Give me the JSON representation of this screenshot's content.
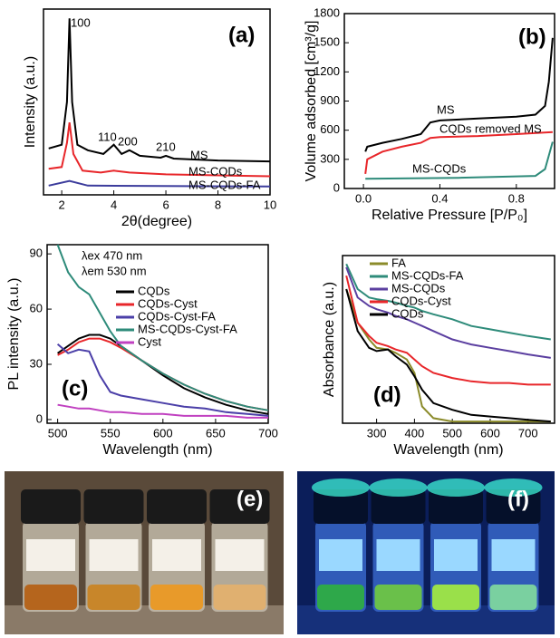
{
  "chart_data": [
    {
      "type": "line",
      "panel_label": "(a)",
      "xlabel": "2θ(degree)",
      "ylabel": "Intensity (a.u.)",
      "xlim": [
        1.3,
        10
      ],
      "xticks": [
        2,
        4,
        6,
        8,
        10
      ],
      "ylim": [
        0,
        100
      ],
      "annotations": [
        "100",
        "110",
        "200",
        "210"
      ],
      "series": [
        {
          "name": "MS",
          "color": "#000000",
          "x": [
            1.5,
            2.0,
            2.2,
            2.3,
            2.4,
            2.6,
            3.0,
            3.6,
            4.0,
            4.3,
            4.6,
            5.0,
            5.8,
            6.0,
            6.3,
            8,
            10
          ],
          "values": [
            25,
            27,
            50,
            95,
            50,
            27,
            24,
            22,
            27,
            22,
            24,
            21,
            20,
            21,
            19.5,
            18.5,
            18
          ]
        },
        {
          "name": "MS-CQDs",
          "color": "#e8262a",
          "x": [
            1.5,
            2.0,
            2.2,
            2.3,
            2.45,
            2.8,
            3.5,
            4.0,
            4.6,
            6,
            10
          ],
          "values": [
            14,
            15,
            28,
            39,
            22,
            13,
            12,
            13,
            12,
            11,
            10
          ]
        },
        {
          "name": "MS-CQDs-FA",
          "color": "#3c3c9c",
          "x": [
            1.5,
            2.3,
            3,
            10
          ],
          "values": [
            5,
            7.5,
            5,
            4.5
          ]
        }
      ]
    },
    {
      "type": "line",
      "panel_label": "(b)",
      "xlabel": "Relative Pressure [P/P₀]",
      "ylabel": "Volume adsorbed [cm³/g]",
      "xlim": [
        -0.1,
        1.0
      ],
      "xticks": [
        {
          "value": 0,
          "label": "0.0"
        },
        {
          "value": 0.4,
          "label": "0.4"
        },
        {
          "value": 0.8,
          "label": "0.8"
        }
      ],
      "ylim": [
        0,
        1800
      ],
      "yticks": [
        0,
        300,
        600,
        900,
        1200,
        1500,
        1800
      ],
      "series": [
        {
          "name": "MS",
          "color": "#000000",
          "x": [
            0.01,
            0.02,
            0.1,
            0.2,
            0.3,
            0.35,
            0.4,
            0.6,
            0.8,
            0.9,
            0.95,
            0.97,
            0.99
          ],
          "values": [
            380,
            430,
            470,
            510,
            560,
            680,
            700,
            720,
            740,
            760,
            850,
            1100,
            1550
          ]
        },
        {
          "name": "CQDs removed MS",
          "color": "#e8262a",
          "x": [
            0.01,
            0.02,
            0.1,
            0.2,
            0.3,
            0.35,
            0.4,
            0.6,
            0.8,
            0.99
          ],
          "values": [
            150,
            300,
            380,
            430,
            470,
            520,
            530,
            540,
            560,
            580
          ]
        },
        {
          "name": "MS-CQDs",
          "color": "#2e8b7a",
          "x": [
            0.01,
            0.5,
            0.9,
            0.95,
            0.99
          ],
          "values": [
            100,
            110,
            130,
            200,
            480
          ]
        }
      ]
    },
    {
      "type": "line",
      "panel_label": "(c)",
      "xlabel": "Wavelength (nm)",
      "ylabel": "PL intensity (a.u.)",
      "xlim": [
        490,
        700
      ],
      "xticks": [
        500,
        550,
        600,
        650,
        700
      ],
      "ylim": [
        -2,
        95
      ],
      "yticks": [
        0,
        30,
        60,
        90
      ],
      "annotations": [
        "λex 470 nm",
        "λem 530 nm"
      ],
      "legend": "upper right",
      "x": [
        500,
        510,
        520,
        530,
        540,
        550,
        560,
        580,
        600,
        620,
        640,
        660,
        680,
        700
      ],
      "series": [
        {
          "name": "CQDs",
          "color": "#000000",
          "values": [
            36,
            40,
            44,
            46,
            46,
            44,
            40,
            32,
            24,
            17,
            12,
            8,
            5,
            3
          ]
        },
        {
          "name": "CQDs-Cyst",
          "color": "#e8262a",
          "values": [
            35,
            38,
            42,
            44,
            44,
            42,
            39,
            32,
            25,
            19,
            14,
            10,
            7,
            5
          ]
        },
        {
          "name": "CQDs-Cyst-FA",
          "color": "#4b3fa8",
          "values": [
            41,
            36,
            38,
            37,
            24,
            15,
            13,
            11,
            9,
            7,
            6,
            4,
            3,
            2
          ]
        },
        {
          "name": "MS-CQDs-Cyst-FA",
          "color": "#2e8b7a",
          "values": [
            95,
            80,
            72,
            68,
            58,
            48,
            40,
            32,
            25,
            19,
            14,
            10,
            7,
            5
          ]
        },
        {
          "name": "Cyst",
          "color": "#c040c0",
          "values": [
            8,
            7,
            6,
            6,
            5,
            4,
            4,
            3,
            3,
            2,
            2,
            2,
            1,
            1
          ]
        }
      ]
    },
    {
      "type": "line",
      "panel_label": "(d)",
      "xlabel": "Wavelength (nm)",
      "ylabel": "Absorbance (a.u.)",
      "xlim": [
        210,
        770
      ],
      "xticks": [
        300,
        400,
        500,
        600,
        700
      ],
      "ylim": [
        0,
        100
      ],
      "legend": "upper left",
      "x": [
        220,
        250,
        280,
        300,
        330,
        350,
        380,
        400,
        420,
        450,
        500,
        550,
        600,
        650,
        700,
        760
      ],
      "series": [
        {
          "name": "FA",
          "color": "#8b8b2a",
          "values": [
            80,
            60,
            50,
            45,
            44,
            42,
            38,
            30,
            10,
            3,
            1,
            1,
            1,
            1,
            1,
            1
          ]
        },
        {
          "name": "MS-CQDs-FA",
          "color": "#2e8b7a",
          "values": [
            95,
            80,
            75,
            74,
            73,
            72,
            70,
            69,
            67,
            65,
            62,
            58,
            56,
            54,
            52,
            50
          ]
        },
        {
          "name": "MS-CQDs",
          "color": "#5b3fa0",
          "values": [
            93,
            75,
            70,
            68,
            66,
            64,
            62,
            60,
            58,
            55,
            50,
            47,
            45,
            43,
            41,
            39
          ]
        },
        {
          "name": "CQDs-Cyst",
          "color": "#e8262a",
          "values": [
            88,
            60,
            52,
            48,
            46,
            44,
            42,
            38,
            34,
            30,
            27,
            25,
            24,
            24,
            23,
            23
          ]
        },
        {
          "name": "CQDs",
          "color": "#000000",
          "values": [
            80,
            55,
            45,
            43,
            44,
            40,
            35,
            28,
            20,
            12,
            8,
            5,
            4,
            3,
            2,
            1
          ]
        }
      ]
    }
  ],
  "photos": [
    {
      "label": "(e)"
    },
    {
      "label": "(f)"
    }
  ]
}
